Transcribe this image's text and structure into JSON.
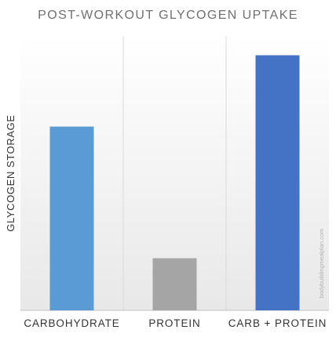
{
  "chart_data": {
    "type": "bar",
    "title": "POST-WORKOUT GLYCOGEN UPTAKE",
    "xlabel": "",
    "ylabel": "GLYCOGEN STORAGE",
    "categories": [
      "CARBOHYDRATE",
      "PROTEIN",
      "CARB + PROTEIN"
    ],
    "values": [
      67,
      19,
      93
    ],
    "colors": [
      "#5b9bd5",
      "#a5a5a5",
      "#4472c4"
    ],
    "ylim": [
      0,
      100
    ],
    "y_ticks_shown": false,
    "grid": "vertical category separators",
    "legend": "none"
  },
  "watermark": "bodybuildingmealplan.com"
}
